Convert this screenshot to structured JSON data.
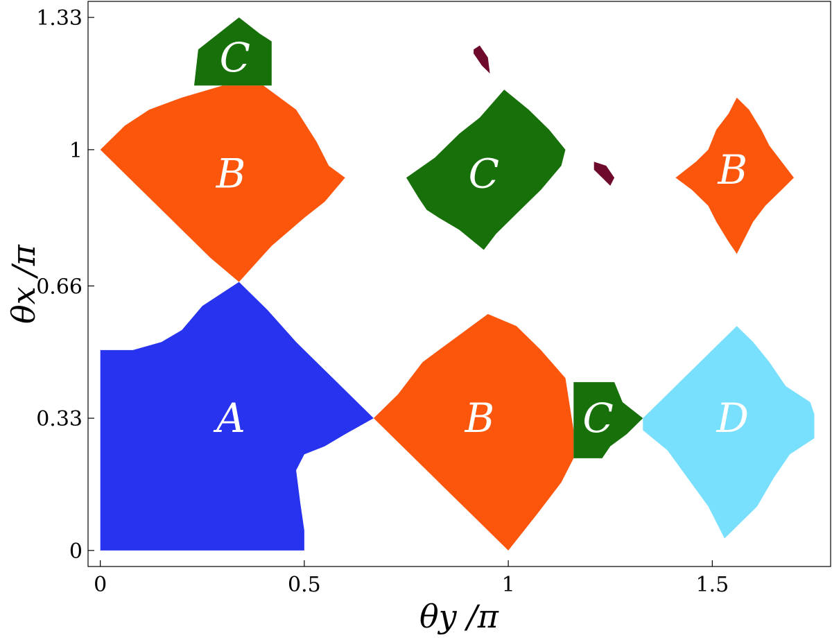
{
  "chart_data": {
    "type": "heatmap",
    "title": "",
    "xlabel": "θy /π",
    "ylabel": "θx /π",
    "xlim": [
      -0.03,
      1.79
    ],
    "ylim": [
      -0.04,
      1.37
    ],
    "xticks": [
      {
        "value": 0,
        "label": "0"
      },
      {
        "value": 0.5,
        "label": "0.5"
      },
      {
        "value": 1,
        "label": "1"
      },
      {
        "value": 1.5,
        "label": "1.5"
      }
    ],
    "yticks": [
      {
        "value": 0,
        "label": "0"
      },
      {
        "value": 0.33,
        "label": "0.33"
      },
      {
        "value": 0.66,
        "label": "0.66"
      },
      {
        "value": 1,
        "label": "1"
      },
      {
        "value": 1.33,
        "label": "1.33"
      }
    ],
    "colors": {
      "A": "#2833f0",
      "B": "#fc550c",
      "C": "#17700a",
      "D": "#78dffc",
      "E": "#6e0a2c"
    },
    "regions": [
      {
        "label": "A",
        "class": "A",
        "label_at": [
          0.32,
          0.33
        ],
        "polygon": [
          [
            0,
            0
          ],
          [
            0.5,
            0
          ],
          [
            0.5,
            0.05
          ],
          [
            0.49,
            0.12
          ],
          [
            0.48,
            0.2
          ],
          [
            0.5,
            0.24
          ],
          [
            0.55,
            0.26
          ],
          [
            0.6,
            0.29
          ],
          [
            0.67,
            0.33
          ],
          [
            0.62,
            0.38
          ],
          [
            0.55,
            0.45
          ],
          [
            0.48,
            0.52
          ],
          [
            0.41,
            0.6
          ],
          [
            0.34,
            0.67
          ],
          [
            0.25,
            0.61
          ],
          [
            0.2,
            0.55
          ],
          [
            0.15,
            0.52
          ],
          [
            0.08,
            0.5
          ],
          [
            0,
            0.5
          ]
        ]
      },
      {
        "label": "B",
        "class": "B",
        "label_at": [
          0.32,
          0.94
        ],
        "polygon": [
          [
            0.34,
            0.67
          ],
          [
            0.27,
            0.73
          ],
          [
            0.18,
            0.82
          ],
          [
            0.09,
            0.91
          ],
          [
            0,
            1
          ],
          [
            0.06,
            1.06
          ],
          [
            0.12,
            1.1
          ],
          [
            0.2,
            1.13
          ],
          [
            0.3,
            1.16
          ],
          [
            0.4,
            1.16
          ],
          [
            0.48,
            1.1
          ],
          [
            0.53,
            1.02
          ],
          [
            0.56,
            0.96
          ],
          [
            0.6,
            0.93
          ],
          [
            0.55,
            0.87
          ],
          [
            0.5,
            0.83
          ],
          [
            0.42,
            0.76
          ]
        ]
      },
      {
        "label": "C",
        "class": "C",
        "label_at": [
          0.33,
          1.23
        ],
        "polygon": [
          [
            0.23,
            1.16
          ],
          [
            0.42,
            1.16
          ],
          [
            0.42,
            1.27
          ],
          [
            0.39,
            1.29
          ],
          [
            0.34,
            1.33
          ],
          [
            0.29,
            1.29
          ],
          [
            0.24,
            1.25
          ]
        ]
      },
      {
        "label": "B",
        "class": "B",
        "label_at": [
          0.93,
          0.33
        ],
        "polygon": [
          [
            0.67,
            0.33
          ],
          [
            0.73,
            0.39
          ],
          [
            0.79,
            0.47
          ],
          [
            0.87,
            0.53
          ],
          [
            0.95,
            0.59
          ],
          [
            1.02,
            0.56
          ],
          [
            1.08,
            0.5
          ],
          [
            1.14,
            0.43
          ],
          [
            1.16,
            0.3
          ],
          [
            1.16,
            0.23
          ],
          [
            1.13,
            0.17
          ],
          [
            1.1,
            0.13
          ],
          [
            1.07,
            0.09
          ],
          [
            1,
            0
          ],
          [
            0.93,
            0.07
          ],
          [
            0.86,
            0.14
          ],
          [
            0.79,
            0.21
          ],
          [
            0.72,
            0.28
          ]
        ]
      },
      {
        "label": "C",
        "class": "C",
        "label_at": [
          1.22,
          0.33
        ],
        "polygon": [
          [
            1.16,
            0.42
          ],
          [
            1.26,
            0.42
          ],
          [
            1.28,
            0.37
          ],
          [
            1.33,
            0.33
          ],
          [
            1.29,
            0.29
          ],
          [
            1.25,
            0.26
          ],
          [
            1.23,
            0.23
          ],
          [
            1.16,
            0.23
          ]
        ]
      },
      {
        "label": "D",
        "class": "D",
        "label_at": [
          1.55,
          0.33
        ],
        "polygon": [
          [
            1.33,
            0.33
          ],
          [
            1.39,
            0.39
          ],
          [
            1.45,
            0.45
          ],
          [
            1.5,
            0.5
          ],
          [
            1.56,
            0.56
          ],
          [
            1.6,
            0.52
          ],
          [
            1.64,
            0.47
          ],
          [
            1.68,
            0.41
          ],
          [
            1.74,
            0.37
          ],
          [
            1.75,
            0.34
          ],
          [
            1.75,
            0.28
          ],
          [
            1.69,
            0.24
          ],
          [
            1.65,
            0.18
          ],
          [
            1.61,
            0.11
          ],
          [
            1.55,
            0.05
          ],
          [
            1.53,
            0.03
          ],
          [
            1.49,
            0.11
          ],
          [
            1.44,
            0.18
          ],
          [
            1.39,
            0.25
          ],
          [
            1.33,
            0.3
          ]
        ]
      },
      {
        "label": "C",
        "class": "C",
        "label_at": [
          0.94,
          0.94
        ],
        "polygon": [
          [
            0.75,
            0.93
          ],
          [
            0.82,
            0.98
          ],
          [
            0.88,
            1.04
          ],
          [
            0.93,
            1.08
          ],
          [
            0.99,
            1.15
          ],
          [
            1.05,
            1.1
          ],
          [
            1.1,
            1.05
          ],
          [
            1.14,
            1
          ],
          [
            1.13,
            0.96
          ],
          [
            1.08,
            0.9
          ],
          [
            1.02,
            0.84
          ],
          [
            0.97,
            0.79
          ],
          [
            0.94,
            0.75
          ],
          [
            0.88,
            0.8
          ],
          [
            0.83,
            0.83
          ],
          [
            0.8,
            0.85
          ],
          [
            0.78,
            0.88
          ]
        ]
      },
      {
        "label": "B",
        "class": "B",
        "label_at": [
          1.55,
          0.95
        ],
        "polygon": [
          [
            1.41,
            0.93
          ],
          [
            1.46,
            0.97
          ],
          [
            1.49,
            1.0
          ],
          [
            1.51,
            1.05
          ],
          [
            1.54,
            1.09
          ],
          [
            1.56,
            1.13
          ],
          [
            1.59,
            1.1
          ],
          [
            1.62,
            1.05
          ],
          [
            1.64,
            1.01
          ],
          [
            1.67,
            0.97
          ],
          [
            1.7,
            0.93
          ],
          [
            1.67,
            0.9
          ],
          [
            1.63,
            0.86
          ],
          [
            1.6,
            0.82
          ],
          [
            1.58,
            0.78
          ],
          [
            1.56,
            0.74
          ],
          [
            1.54,
            0.77
          ],
          [
            1.51,
            0.82
          ],
          [
            1.49,
            0.86
          ],
          [
            1.45,
            0.9
          ]
        ]
      },
      {
        "label": "",
        "class": "E",
        "label_at": null,
        "polygon": [
          [
            0.915,
            1.25
          ],
          [
            0.93,
            1.26
          ],
          [
            0.95,
            1.23
          ],
          [
            0.955,
            1.19
          ],
          [
            0.935,
            1.21
          ],
          [
            0.915,
            1.24
          ]
        ]
      },
      {
        "label": "",
        "class": "E",
        "label_at": null,
        "polygon": [
          [
            1.21,
            0.97
          ],
          [
            1.24,
            0.96
          ],
          [
            1.26,
            0.93
          ],
          [
            1.25,
            0.91
          ],
          [
            1.23,
            0.93
          ],
          [
            1.21,
            0.95
          ]
        ]
      }
    ]
  }
}
